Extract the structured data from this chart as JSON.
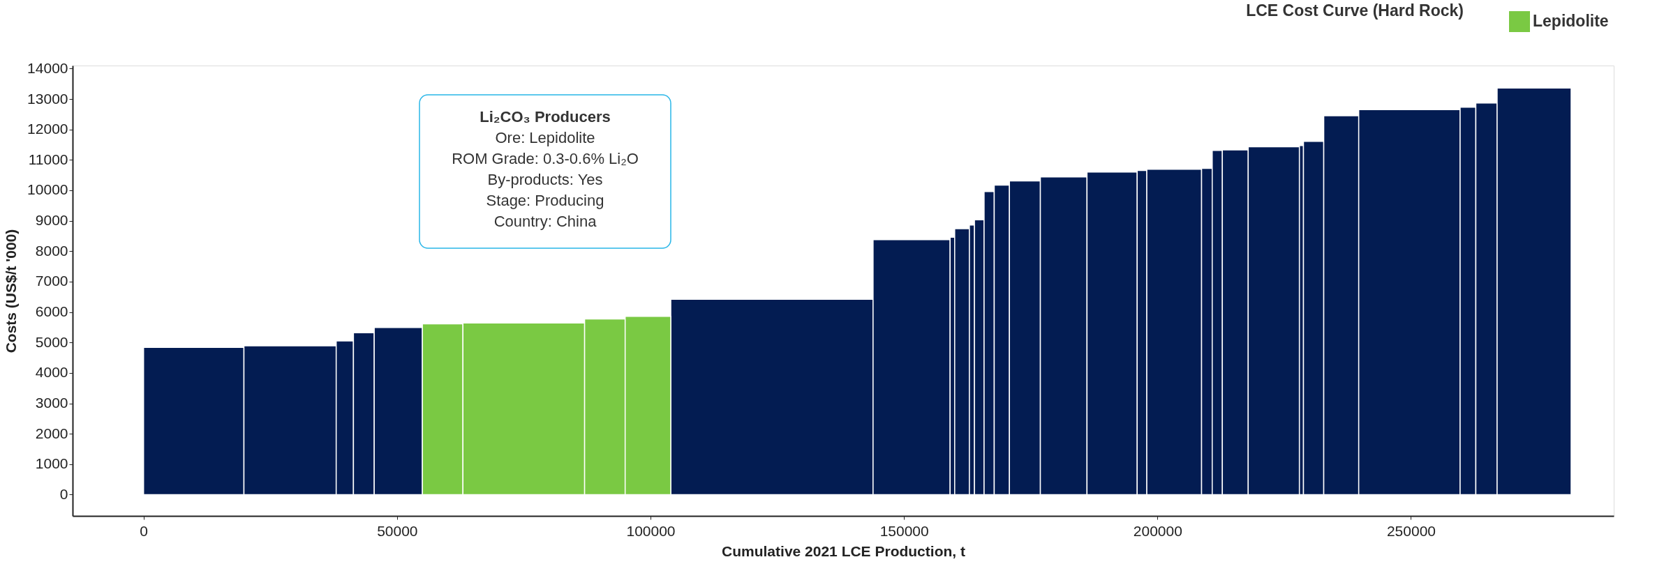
{
  "chart_data": {
    "type": "histogram",
    "title": "LCE Cost Curve (Hard Rock)",
    "xlabel": "Cumulative 2021 LCE Production, t",
    "ylabel": "Costs (US$/t '000)",
    "bins": [
      0,
      19800,
      38000,
      41400,
      45500,
      55000,
      63000,
      87000,
      95000,
      104000,
      143900,
      159100,
      160000,
      162900,
      163900,
      165800,
      167800,
      170800,
      176900,
      186100,
      196000,
      197900,
      208700,
      210800,
      212800,
      217900,
      228000,
      228800,
      232800,
      239700,
      259700,
      262800,
      267000,
      281600
    ],
    "series": [
      {
        "color": "#031c52",
        "values": [
          4840,
          4890,
          5050,
          5320,
          5490,
          null,
          null,
          null,
          null,
          6420,
          8380,
          8460,
          8740,
          8860,
          9030,
          9960,
          10170,
          10310,
          10440,
          10600,
          10650,
          10690,
          10720,
          11310,
          11330,
          11430,
          11470,
          11610,
          12450,
          12650,
          12730,
          12870,
          13360
        ]
      },
      {
        "name": "Lepidolite",
        "color": "#7ac943",
        "values": [
          null,
          null,
          null,
          null,
          null,
          5610,
          5640,
          5770,
          5860,
          null,
          null,
          null,
          null,
          null,
          null,
          null,
          null,
          null,
          null,
          null,
          null,
          null,
          null,
          null,
          null,
          null,
          null,
          null,
          null,
          null,
          null,
          null,
          null
        ]
      }
    ],
    "xlim": [
      -14000,
      290000
    ],
    "ylim": [
      -700,
      14100
    ],
    "xticks": [
      0,
      50000,
      100000,
      150000,
      200000,
      250000
    ],
    "yticks": [
      0,
      1000,
      2000,
      3000,
      4000,
      5000,
      6000,
      7000,
      8000,
      9000,
      10000,
      11000,
      12000,
      13000,
      14000
    ],
    "legend": "top right",
    "grid": false,
    "annotations": [
      "Li₂CO₃ Producers",
      "Ore: Lepidolite",
      "ROM Grade: 0.3-0.6% Li₂O",
      "By-products: Yes",
      "Stage: Producing",
      "Country: China"
    ]
  }
}
